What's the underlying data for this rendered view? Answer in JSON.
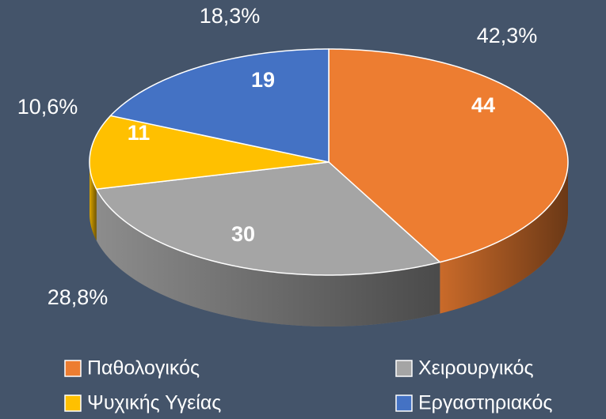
{
  "chart_data": {
    "type": "pie",
    "categories": [
      "Παθολογικός",
      "Χειρουργικός",
      "Ψυχικής Υγείας",
      "Εργαστηριακός"
    ],
    "values": [
      44,
      30,
      11,
      19
    ],
    "percent_labels": [
      "42,3%",
      "28,8%",
      "10,6%",
      "18,3%"
    ],
    "colors": [
      "#ed7d31",
      "#a5a5a5",
      "#ffc000",
      "#4472c4"
    ],
    "legend": "bottom"
  }
}
